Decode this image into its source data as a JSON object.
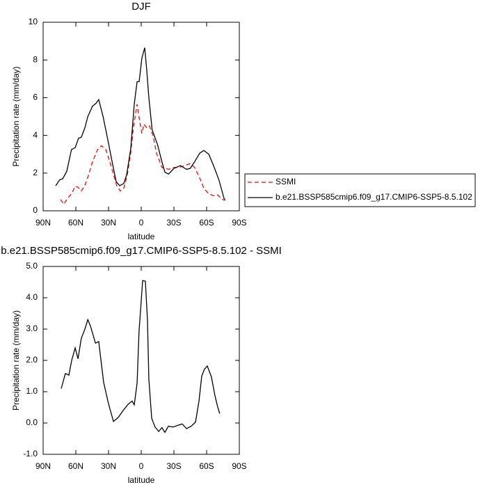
{
  "chart_data": [
    {
      "type": "line",
      "title": "DJF",
      "xlabel": "latitude",
      "ylabel": "Precipitation rate (mm/day)",
      "xlim": [
        90,
        -90
      ],
      "xticks": [
        {
          "value": 90,
          "label": "90N"
        },
        {
          "value": 60,
          "label": "60N"
        },
        {
          "value": 30,
          "label": "30N"
        },
        0,
        {
          "value": -30,
          "label": "30S"
        },
        {
          "value": -60,
          "label": "60S"
        },
        {
          "value": -90,
          "label": "90S"
        }
      ],
      "ylim": [
        0,
        10
      ],
      "yticks": [
        0,
        2,
        4,
        6,
        8,
        10
      ],
      "legend": "right",
      "series": [
        {
          "name": "SSMI",
          "color": "#ff0000",
          "dash": true,
          "x": [
            74,
            71,
            67.7,
            64,
            60.6,
            58,
            55,
            51.7,
            48,
            44.7,
            40,
            36.4,
            32.5,
            29.4,
            25.5,
            22.3,
            19.2,
            16,
            12.8,
            9.6,
            7,
            3.8,
            1.3,
            -0.6,
            -2.5,
            -5,
            -7.6,
            -11,
            -14,
            -19,
            -25,
            -30,
            -35,
            -40,
            -44.7,
            -49,
            -53.6,
            -57.4,
            -62,
            -66.4,
            -70,
            -74.6,
            -77
          ],
          "values": [
            0.6,
            0.35,
            0.65,
            0.9,
            1.3,
            1.25,
            1.05,
            1.35,
            1.95,
            2.6,
            3.25,
            3.45,
            3.25,
            2.7,
            1.95,
            1.3,
            1.05,
            1.2,
            1.9,
            3.1,
            4.5,
            5.65,
            4.7,
            4.1,
            4.6,
            4.4,
            4.5,
            3.95,
            3.05,
            2.3,
            2.2,
            2.3,
            2.3,
            2.4,
            2.5,
            2.3,
            1.75,
            1.2,
            0.9,
            0.8,
            0.85,
            0.6,
            0.55
          ]
        },
        {
          "name": "b.e21.BSSP585cmip6.f09_g17.CMIP6-SSP5-8.5.102",
          "color": "#000000",
          "dash": false,
          "x": [
            78.5,
            74.7,
            72,
            68.3,
            64,
            60.6,
            57.5,
            55,
            51.7,
            49,
            44.7,
            41.5,
            39,
            35,
            30.6,
            26,
            23,
            19.8,
            16,
            13.4,
            9.6,
            6.4,
            3.8,
            1.9,
            -0.6,
            -3.2,
            -5,
            -7,
            -10,
            -15,
            -19,
            -21.7,
            -25,
            -30,
            -36,
            -41.5,
            -45,
            -49,
            -53.6,
            -57.4,
            -62,
            -67,
            -71.5,
            -76,
            -77
          ],
          "values": [
            1.33,
            1.65,
            1.7,
            2.1,
            3.25,
            3.35,
            3.85,
            3.9,
            4.4,
            5.0,
            5.55,
            5.7,
            5.9,
            5.0,
            3.75,
            2.4,
            1.55,
            1.33,
            1.45,
            1.9,
            3.3,
            5.65,
            6.85,
            6.85,
            8.1,
            8.65,
            7.5,
            6.0,
            4.3,
            3.5,
            2.6,
            2.05,
            1.95,
            2.25,
            2.4,
            2.2,
            2.25,
            2.6,
            3.05,
            3.2,
            3.0,
            2.3,
            1.6,
            0.65,
            0.6
          ]
        }
      ]
    },
    {
      "type": "line",
      "title": "b.e21.BSSP585cmip6.f09_g17.CMIP6-SSP5-8.5.102 - SSMI",
      "xlabel": "latitude",
      "ylabel": "Precipitation rate (mm/day)",
      "xlim": [
        90,
        -90
      ],
      "xticks": [
        {
          "value": 90,
          "label": "90N"
        },
        {
          "value": 60,
          "label": "60N"
        },
        {
          "value": 30,
          "label": "30N"
        },
        0,
        {
          "value": -30,
          "label": "30S"
        },
        {
          "value": -60,
          "label": "60S"
        },
        {
          "value": -90,
          "label": "90S"
        }
      ],
      "ylim": [
        -1,
        5
      ],
      "yticks": [
        {
          "value": -1,
          "label": "-1.0"
        },
        {
          "value": 0,
          "label": "0.0"
        },
        {
          "value": 1,
          "label": "1.0"
        },
        {
          "value": 2,
          "label": "2.0"
        },
        {
          "value": 3,
          "label": "3.0"
        },
        {
          "value": 4,
          "label": "4.0"
        },
        {
          "value": 5,
          "label": "5.0"
        }
      ],
      "series": [
        {
          "color": "#000000",
          "dash": false,
          "x": [
            73.4,
            69.6,
            66.4,
            63.8,
            60.6,
            58,
            55,
            51.7,
            49,
            46.6,
            42,
            39,
            34.5,
            30.6,
            28.7,
            25.5,
            21,
            16.6,
            12,
            8.3,
            6.4,
            3.8,
            2,
            0,
            -1.3,
            -3.8,
            -5.7,
            -7,
            -9.6,
            -12.7,
            -16,
            -19,
            -21.7,
            -25,
            -29,
            -34,
            -37.6,
            -41.5,
            -46,
            -49.8,
            -53,
            -55.5,
            -58,
            -60.6,
            -64.4,
            -67.6,
            -70,
            -72
          ],
          "values": [
            1.1,
            1.58,
            1.53,
            2.0,
            2.4,
            2.05,
            2.7,
            3.0,
            3.3,
            3.1,
            2.55,
            2.6,
            1.3,
            0.7,
            0.45,
            0.05,
            0.18,
            0.4,
            0.6,
            0.7,
            0.58,
            1.27,
            2.93,
            3.9,
            4.55,
            4.53,
            3.3,
            1.4,
            0.15,
            -0.13,
            -0.27,
            -0.15,
            -0.3,
            -0.1,
            -0.13,
            -0.07,
            -0.03,
            -0.18,
            -0.1,
            0.03,
            0.7,
            1.5,
            1.72,
            1.82,
            1.47,
            0.88,
            0.53,
            0.3
          ]
        }
      ]
    }
  ]
}
